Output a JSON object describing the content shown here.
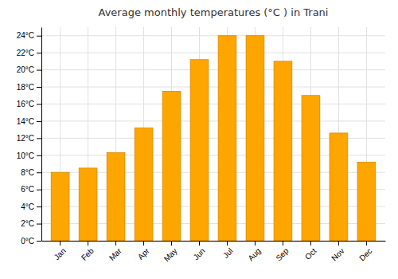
{
  "chart_data": {
    "type": "bar",
    "title": "Average monthly temperatures (°C ) in Trani",
    "categories": [
      "Jan",
      "Feb",
      "Mar",
      "Apr",
      "May",
      "Jun",
      "Jul",
      "Aug",
      "Sep",
      "Oct",
      "Nov",
      "Dec"
    ],
    "values": [
      8.0,
      8.5,
      10.3,
      13.2,
      17.5,
      21.2,
      24.0,
      24.0,
      21.0,
      17.0,
      12.6,
      9.2
    ],
    "color": "#FFA500",
    "ylim": [
      0,
      25
    ],
    "yticks": [
      {
        "value": 0,
        "label": "0°C"
      },
      {
        "value": 2,
        "label": "2°C"
      },
      {
        "value": 4,
        "label": "4°C"
      },
      {
        "value": 6,
        "label": "6°C"
      },
      {
        "value": 8,
        "label": "8°C"
      },
      {
        "value": 10,
        "label": "10°C"
      },
      {
        "value": 12,
        "label": "12°C"
      },
      {
        "value": 14,
        "label": "14°C"
      },
      {
        "value": 16,
        "label": "16°C"
      },
      {
        "value": 18,
        "label": "18°C"
      },
      {
        "value": 20,
        "label": "20°C"
      },
      {
        "value": 22,
        "label": "22°C"
      },
      {
        "value": 24,
        "label": "24°C"
      }
    ],
    "grid": true
  }
}
